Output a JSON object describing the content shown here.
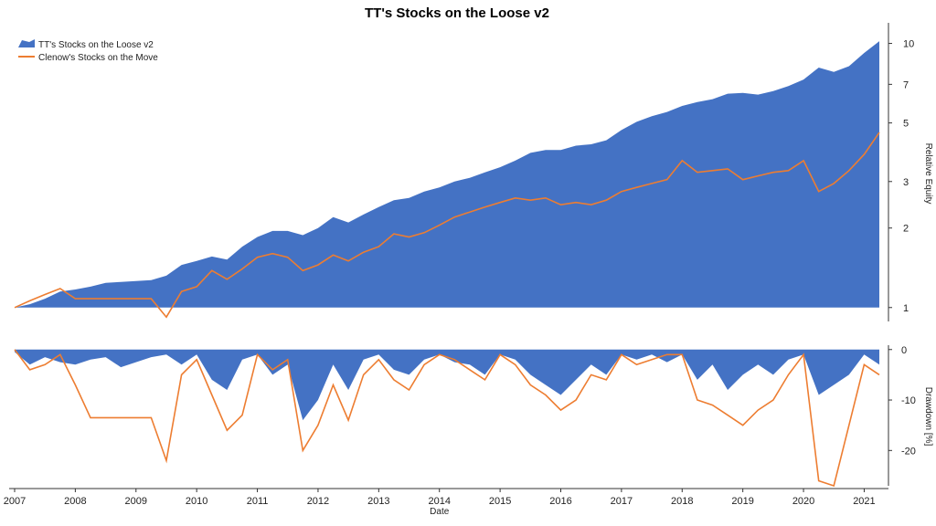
{
  "chart_data": [
    {
      "type": "area",
      "title": "TT's Stocks on the Loose v2",
      "xlabel": "Date",
      "ylabel": "Relative Equity",
      "yscale": "log",
      "ylim": [
        0.9,
        11.5
      ],
      "yticks": [
        1,
        2,
        3,
        5,
        7,
        10
      ],
      "xticks": [
        "2007",
        "2008",
        "2009",
        "2010",
        "2011",
        "2012",
        "2013",
        "2014",
        "2015",
        "2016",
        "2017",
        "2018",
        "2019",
        "2020",
        "2021"
      ],
      "legend": "top-left",
      "grid": false,
      "x": [
        2007.0,
        2007.25,
        2007.5,
        2007.75,
        2008.0,
        2008.25,
        2008.5,
        2008.75,
        2009.0,
        2009.25,
        2009.5,
        2009.75,
        2010.0,
        2010.25,
        2010.5,
        2010.75,
        2011.0,
        2011.25,
        2011.5,
        2011.75,
        2012.0,
        2012.25,
        2012.5,
        2012.75,
        2013.0,
        2013.25,
        2013.5,
        2013.75,
        2014.0,
        2014.25,
        2014.5,
        2014.75,
        2015.0,
        2015.25,
        2015.5,
        2015.75,
        2016.0,
        2016.25,
        2016.5,
        2016.75,
        2017.0,
        2017.25,
        2017.5,
        2017.75,
        2018.0,
        2018.25,
        2018.5,
        2018.75,
        2019.0,
        2019.25,
        2019.5,
        2019.75,
        2020.0,
        2020.25,
        2020.5,
        2020.75,
        2021.0,
        2021.25
      ],
      "series": [
        {
          "name": "TT's Stocks on the Loose v2",
          "color": "#4472C4",
          "style": "area",
          "values": [
            1.0,
            1.03,
            1.08,
            1.15,
            1.17,
            1.2,
            1.24,
            1.25,
            1.26,
            1.27,
            1.32,
            1.45,
            1.5,
            1.56,
            1.52,
            1.7,
            1.85,
            1.95,
            1.95,
            1.88,
            2.0,
            2.2,
            2.1,
            2.25,
            2.4,
            2.55,
            2.6,
            2.75,
            2.85,
            3.0,
            3.1,
            3.25,
            3.4,
            3.6,
            3.85,
            3.95,
            3.95,
            4.1,
            4.15,
            4.3,
            4.7,
            5.05,
            5.3,
            5.5,
            5.8,
            6.0,
            6.15,
            6.45,
            6.5,
            6.4,
            6.6,
            6.9,
            7.3,
            8.1,
            7.8,
            8.2,
            9.2,
            10.2
          ]
        },
        {
          "name": "Clenow's Stocks on the Move",
          "color": "#ED7D31",
          "style": "line",
          "values": [
            1.0,
            1.06,
            1.12,
            1.18,
            1.08,
            1.08,
            1.08,
            1.08,
            1.08,
            1.08,
            0.92,
            1.15,
            1.2,
            1.38,
            1.28,
            1.4,
            1.55,
            1.6,
            1.55,
            1.38,
            1.45,
            1.58,
            1.5,
            1.62,
            1.7,
            1.9,
            1.85,
            1.92,
            2.05,
            2.2,
            2.3,
            2.4,
            2.5,
            2.6,
            2.55,
            2.6,
            2.45,
            2.5,
            2.45,
            2.55,
            2.75,
            2.85,
            2.95,
            3.05,
            3.6,
            3.25,
            3.3,
            3.35,
            3.05,
            3.15,
            3.25,
            3.3,
            3.6,
            2.75,
            2.95,
            3.3,
            3.8,
            4.6
          ]
        }
      ]
    },
    {
      "type": "area",
      "xlabel": "Date",
      "ylabel": "Drawdown [%]",
      "ylim": [
        -27,
        0.5
      ],
      "yticks": [
        0,
        -10,
        -20
      ],
      "xticks": [
        "2007",
        "2008",
        "2009",
        "2010",
        "2011",
        "2012",
        "2013",
        "2014",
        "2015",
        "2016",
        "2017",
        "2018",
        "2019",
        "2020",
        "2021"
      ],
      "x": [
        2007.0,
        2007.25,
        2007.5,
        2007.75,
        2008.0,
        2008.25,
        2008.5,
        2008.75,
        2009.0,
        2009.25,
        2009.5,
        2009.75,
        2010.0,
        2010.25,
        2010.5,
        2010.75,
        2011.0,
        2011.25,
        2011.5,
        2011.75,
        2012.0,
        2012.25,
        2012.5,
        2012.75,
        2013.0,
        2013.25,
        2013.5,
        2013.75,
        2014.0,
        2014.25,
        2014.5,
        2014.75,
        2015.0,
        2015.25,
        2015.5,
        2015.75,
        2016.0,
        2016.25,
        2016.5,
        2016.75,
        2017.0,
        2017.25,
        2017.5,
        2017.75,
        2018.0,
        2018.25,
        2018.5,
        2018.75,
        2019.0,
        2019.25,
        2019.5,
        2019.75,
        2020.0,
        2020.25,
        2020.5,
        2020.75,
        2021.0,
        2021.25
      ],
      "series": [
        {
          "name": "TT's Stocks on the Loose v2",
          "color": "#4472C4",
          "style": "area",
          "values": [
            -0.5,
            -3,
            -1.5,
            -2.5,
            -3,
            -2,
            -1.5,
            -3.5,
            -2.5,
            -1.5,
            -1,
            -3,
            -1,
            -6,
            -8,
            -2,
            -1,
            -5,
            -3,
            -14,
            -10,
            -3,
            -8,
            -2,
            -1,
            -4,
            -5,
            -2,
            -1,
            -2.5,
            -3,
            -5,
            -1,
            -2,
            -5,
            -7,
            -9,
            -6,
            -3,
            -5,
            -1,
            -2,
            -1,
            -2.5,
            -1,
            -6,
            -3,
            -8,
            -5,
            -3,
            -5,
            -2,
            -1,
            -9,
            -7,
            -5,
            -1,
            -3
          ]
        },
        {
          "name": "Clenow's Stocks on the Move",
          "color": "#ED7D31",
          "style": "line",
          "values": [
            0,
            -4,
            -3,
            -1,
            -7,
            -13.5,
            -13.5,
            -13.5,
            -13.5,
            -13.5,
            -22,
            -5,
            -2,
            -9,
            -16,
            -13,
            -1,
            -4,
            -2,
            -20,
            -15,
            -7,
            -14,
            -5,
            -2,
            -6,
            -8,
            -3,
            -1,
            -2,
            -4,
            -6,
            -1,
            -3,
            -7,
            -9,
            -12,
            -10,
            -5,
            -6,
            -1,
            -3,
            -2,
            -1,
            -1,
            -10,
            -11,
            -13,
            -15,
            -12,
            -10,
            -5,
            -1,
            -26,
            -27,
            -15,
            -3,
            -5
          ]
        }
      ]
    }
  ]
}
